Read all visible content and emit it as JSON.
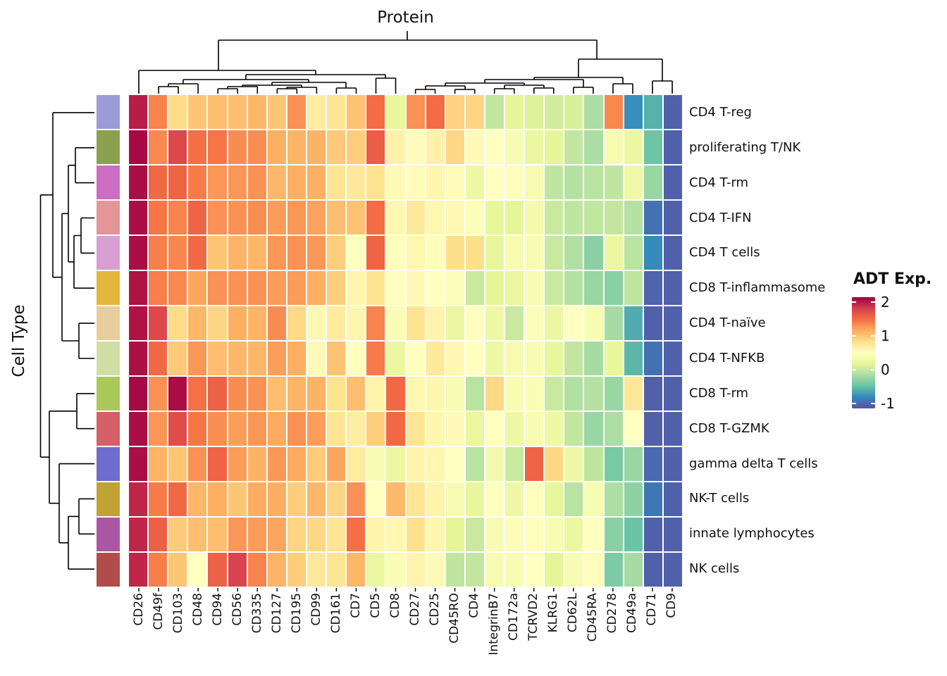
{
  "titles": {
    "protein": "Protein",
    "cell_type": "Cell Type"
  },
  "legend": {
    "title": "ADT Exp.",
    "tick_labels": [
      "2",
      "1",
      "0",
      "-1"
    ],
    "tick_values": [
      2,
      1,
      0,
      -1
    ]
  },
  "chart_data": {
    "type": "heatmap",
    "title": "Protein",
    "x_axis_title": "Protein",
    "y_axis_title": "Cell Type",
    "legend_title": "ADT Exp.",
    "legend_ticks": [
      2,
      1,
      0,
      -1
    ],
    "columns": [
      "CD26",
      "CD49f",
      "CD103",
      "CD48",
      "CD94",
      "CD56",
      "CD335",
      "CD127",
      "CD195",
      "CD99",
      "CD161",
      "CD7",
      "CD5",
      "CD8",
      "CD27",
      "CD25",
      "CD45RO",
      "CD4",
      "IntegrinB7",
      "CD172a",
      "TCRVD2",
      "KLRG1",
      "CD62L",
      "CD45RA",
      "CD278",
      "CD49a",
      "CD71",
      "CD9"
    ],
    "rows": [
      "CD4 T-reg",
      "proliferating T/NK",
      "CD4 T-rm",
      "CD4 T-IFN",
      "CD4 T cells",
      "CD8 T-inflammasome",
      "CD4 T-naïve",
      "CD4 T-NFKB",
      "CD8 T-rm",
      "CD8 T-GZMK",
      "gamma delta T cells",
      "NK-T cells",
      "innate lymphocytes",
      "NK cells"
    ],
    "row_annotation_colors": [
      "#9B9BD7",
      "#8AA14F",
      "#CC6EC1",
      "#E39597",
      "#D89FD5",
      "#E3B63E",
      "#E9CD9C",
      "#D0DDA3",
      "#AAC95A",
      "#D56067",
      "#6F6CD0",
      "#C1A234",
      "#AA56A3",
      "#B04C49"
    ],
    "values": [
      [
        2.0,
        1.38,
        0.85,
        1.0,
        1.05,
        1.05,
        1.1,
        1.0,
        1.3,
        0.7,
        0.78,
        1.02,
        1.5,
        0.2,
        1.3,
        1.5,
        0.92,
        0.9,
        -0.03,
        0.18,
        0.12,
        0.05,
        0.1,
        -0.16,
        1.35,
        -0.78,
        -0.58,
        -1.05
      ],
      [
        2.1,
        1.35,
        1.75,
        1.48,
        1.45,
        1.33,
        1.32,
        1.15,
        1.12,
        1.13,
        0.98,
        0.95,
        1.6,
        0.65,
        0.53,
        0.65,
        0.88,
        0.55,
        0.5,
        0.4,
        0.25,
        0.18,
        -0.03,
        -0.16,
        0.38,
        0.25,
        -0.45,
        -1.05
      ],
      [
        2.08,
        1.52,
        1.55,
        1.42,
        1.28,
        1.28,
        1.3,
        1.1,
        1.15,
        1.15,
        0.78,
        0.73,
        0.8,
        0.55,
        0.53,
        0.6,
        0.53,
        0.28,
        0.5,
        0.52,
        0.38,
        -0.05,
        -0.1,
        -0.08,
        -0.05,
        0.3,
        -0.25,
        -1.05
      ],
      [
        2.08,
        1.45,
        1.38,
        1.55,
        1.3,
        1.3,
        1.32,
        1.25,
        1.28,
        1.22,
        1.05,
        1.02,
        1.5,
        0.58,
        0.73,
        0.58,
        0.57,
        0.45,
        0.2,
        0.17,
        0.35,
        0.0,
        -0.05,
        -0.04,
        -0.03,
        -0.1,
        -0.95,
        -1.05
      ],
      [
        2.08,
        1.4,
        1.36,
        1.52,
        1.0,
        1.12,
        1.1,
        1.28,
        1.3,
        1.27,
        0.95,
        0.5,
        1.55,
        0.48,
        0.6,
        0.52,
        0.83,
        0.83,
        0.2,
        0.38,
        0.4,
        0.0,
        -0.12,
        -0.32,
        0.25,
        -0.08,
        -0.8,
        -1.05
      ],
      [
        2.05,
        1.4,
        1.35,
        1.2,
        1.3,
        1.3,
        1.3,
        1.25,
        1.25,
        1.15,
        0.95,
        0.6,
        0.8,
        0.5,
        0.57,
        0.5,
        0.45,
        0.0,
        0.18,
        0.22,
        0.4,
        0.0,
        -0.1,
        -0.25,
        -0.32,
        -0.05,
        -1.03,
        -1.05
      ],
      [
        2.05,
        1.75,
        0.85,
        1.1,
        0.9,
        1.15,
        1.12,
        1.33,
        0.87,
        0.57,
        0.7,
        0.6,
        1.38,
        0.42,
        0.8,
        0.62,
        0.25,
        0.48,
        0.28,
        0.0,
        0.45,
        0.25,
        0.5,
        0.4,
        -0.18,
        -0.62,
        -1.05,
        -1.05
      ],
      [
        2.07,
        1.52,
        0.98,
        1.28,
        1.06,
        1.1,
        1.1,
        1.24,
        1.15,
        0.55,
        1.03,
        0.5,
        1.42,
        0.25,
        0.5,
        0.72,
        0.58,
        0.5,
        0.28,
        0.38,
        0.4,
        0.2,
        -0.03,
        -0.18,
        0.2,
        -0.55,
        -0.95,
        -1.05
      ],
      [
        2.1,
        1.3,
        2.08,
        1.47,
        1.57,
        1.33,
        1.3,
        1.05,
        1.12,
        1.13,
        0.8,
        1.05,
        0.62,
        1.52,
        0.6,
        0.6,
        0.4,
        -0.08,
        0.88,
        0.4,
        0.42,
        0.0,
        -0.12,
        -0.1,
        -0.25,
        0.75,
        -1.06,
        -1.05
      ],
      [
        2.08,
        1.28,
        1.72,
        1.45,
        1.32,
        1.24,
        1.28,
        1.18,
        1.3,
        1.24,
        0.78,
        0.68,
        0.95,
        1.52,
        0.78,
        0.6,
        0.55,
        0.22,
        0.5,
        0.28,
        0.4,
        0.28,
        -0.03,
        -0.25,
        -0.15,
        0.5,
        -1.06,
        -1.05
      ],
      [
        2.08,
        1.12,
        1.0,
        1.3,
        1.55,
        1.25,
        1.13,
        1.27,
        1.18,
        0.97,
        1.2,
        0.7,
        0.4,
        0.25,
        0.62,
        0.6,
        0.5,
        -0.08,
        0.35,
        0.0,
        1.55,
        0.88,
        0.28,
        -0.05,
        -0.4,
        -0.25,
        -1.0,
        -1.05
      ],
      [
        1.95,
        1.42,
        1.52,
        1.1,
        1.15,
        1.0,
        1.17,
        1.16,
        0.95,
        1.1,
        0.9,
        1.3,
        0.5,
        1.08,
        0.78,
        0.62,
        0.38,
        0.2,
        0.48,
        0.28,
        0.52,
        0.2,
        -0.08,
        0.4,
        -0.15,
        -0.3,
        -0.92,
        -1.05
      ],
      [
        1.95,
        1.58,
        0.98,
        1.05,
        1.05,
        1.28,
        1.25,
        1.2,
        0.9,
        0.88,
        0.78,
        1.48,
        0.62,
        0.58,
        0.82,
        0.6,
        0.18,
        0.0,
        0.38,
        0.45,
        0.52,
        0.4,
        0.25,
        0.5,
        -0.32,
        -0.47,
        -1.05,
        -1.05
      ],
      [
        1.95,
        1.4,
        1.0,
        0.5,
        1.57,
        1.78,
        1.38,
        1.12,
        0.95,
        0.73,
        0.78,
        1.1,
        0.25,
        0.42,
        0.62,
        0.55,
        -0.05,
        -0.03,
        0.4,
        0.4,
        0.5,
        0.18,
        0.4,
        0.52,
        -0.38,
        -0.18,
        -1.05,
        -1.05
      ]
    ],
    "colormap": {
      "name": "spectral-reversed",
      "domain": [
        -1.15,
        2.15
      ],
      "anchors": [
        "#5E4FA2",
        "#3288BD",
        "#66C2A5",
        "#ABDDA4",
        "#E6F598",
        "#FFFFBF",
        "#FEE08B",
        "#FDAE61",
        "#F46D43",
        "#D53E4F",
        "#9E0142"
      ]
    },
    "layout": {
      "grid": false,
      "legend_position": "right",
      "dendrograms": [
        "top",
        "left"
      ]
    }
  }
}
